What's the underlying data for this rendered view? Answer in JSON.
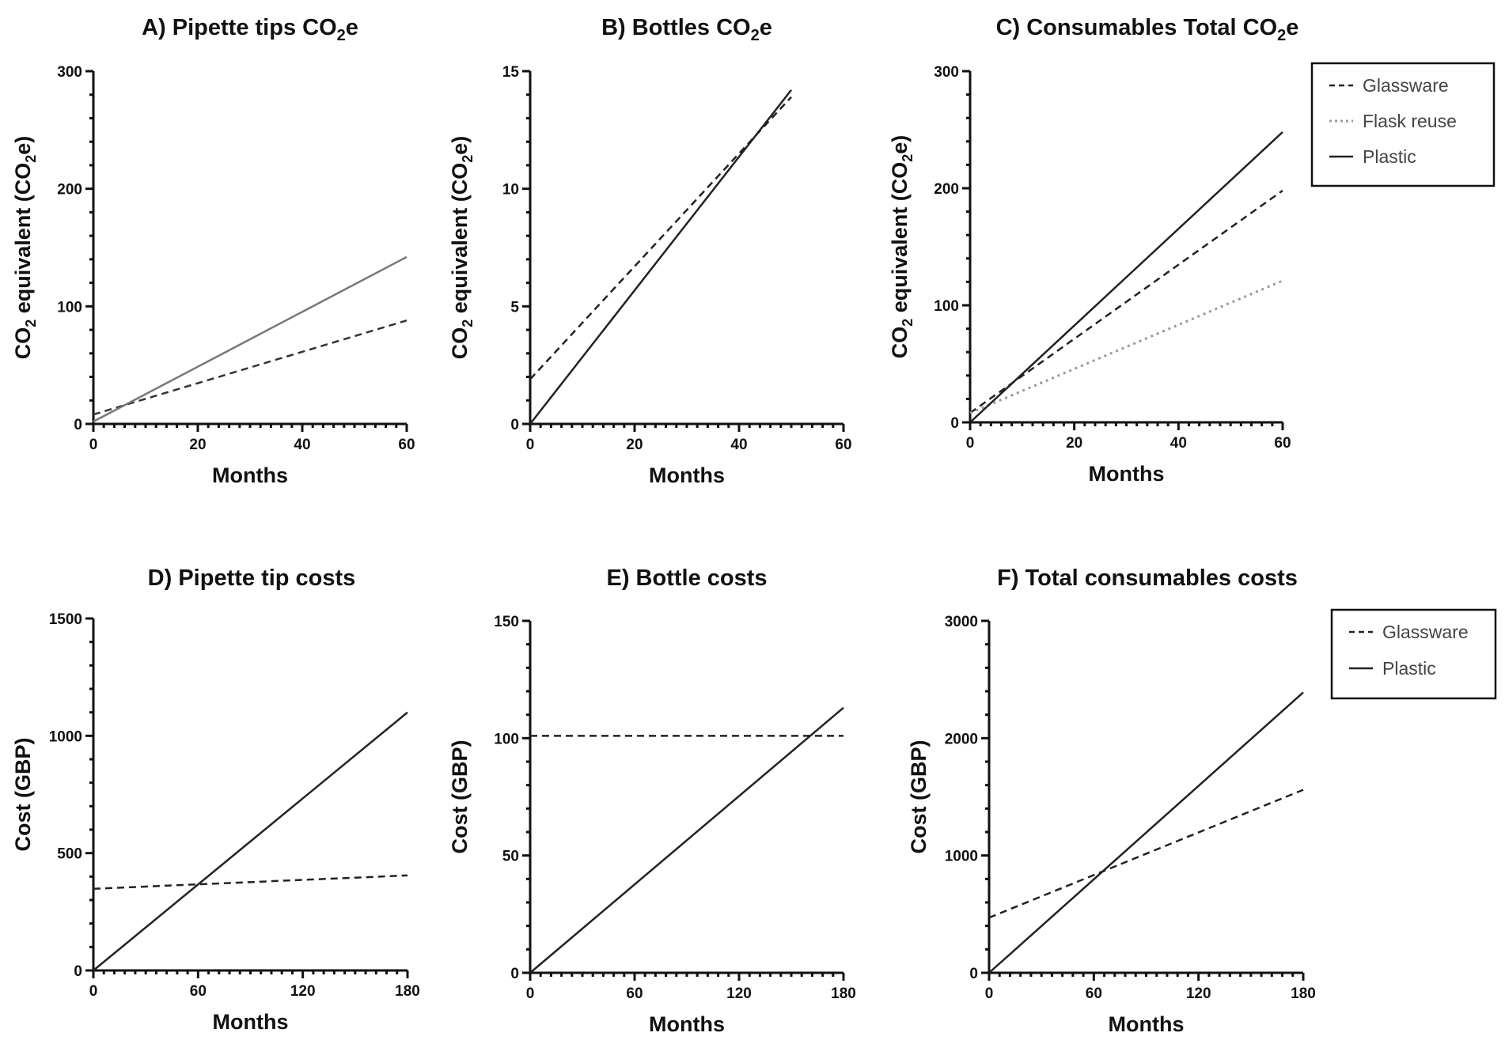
{
  "chart_data": [
    {
      "id": "A",
      "type": "line",
      "title_main": "A) Pipette tips CO",
      "title_sub": "2",
      "title_tail": "e",
      "ylabel_main": "CO",
      "ylabel_sub": "2",
      "ylabel_mid": " equivalent (CO",
      "ylabel_sub2": "2",
      "ylabel_tail": "e)",
      "xlabel": "Months",
      "xlim": [
        0,
        60
      ],
      "ylim": [
        0,
        300
      ],
      "xticks": [
        "0",
        "20",
        "40",
        "60"
      ],
      "xtick_values": [
        0,
        20,
        40,
        60
      ],
      "yticks": [
        "0",
        "100",
        "200",
        "300"
      ],
      "ytick_values": [
        0,
        100,
        200,
        300
      ],
      "series": [
        {
          "name": "Glassware",
          "style": "dashed",
          "color": "#333333",
          "x": [
            0,
            60
          ],
          "y": [
            8,
            88
          ]
        },
        {
          "name": "Plastic",
          "style": "solid",
          "color": "#777777",
          "x": [
            0,
            60
          ],
          "y": [
            2,
            142
          ]
        }
      ]
    },
    {
      "id": "B",
      "type": "line",
      "title_main": "B) Bottles CO",
      "title_sub": "2",
      "title_tail": "e",
      "ylabel_main": "CO",
      "ylabel_sub": "2",
      "ylabel_mid": " equivalent (CO",
      "ylabel_sub2": "2",
      "ylabel_tail": "e)",
      "xlabel": "Months",
      "xlim": [
        0,
        60
      ],
      "ylim": [
        0,
        15
      ],
      "xticks": [
        "0",
        "20",
        "40",
        "60"
      ],
      "xtick_values": [
        0,
        20,
        40,
        60
      ],
      "yticks": [
        "0",
        "5",
        "10",
        "15"
      ],
      "ytick_values": [
        0,
        5,
        10,
        15
      ],
      "series": [
        {
          "name": "Glassware",
          "style": "dashed",
          "color": "#222222",
          "x": [
            0,
            50
          ],
          "y": [
            1.9,
            13.9
          ]
        },
        {
          "name": "Plastic",
          "style": "solid",
          "color": "#222222",
          "x": [
            0,
            50
          ],
          "y": [
            0,
            14.2
          ]
        }
      ]
    },
    {
      "id": "C",
      "type": "line",
      "title_main": "C) Consumables Total CO",
      "title_sub": "2",
      "title_tail": "e",
      "ylabel_main": "CO",
      "ylabel_sub": "2",
      "ylabel_mid": " equivalent (CO",
      "ylabel_sub2": "2",
      "ylabel_tail": "e)",
      "xlabel": "Months",
      "xlim": [
        0,
        60
      ],
      "ylim": [
        0,
        300
      ],
      "xticks": [
        "0",
        "20",
        "40",
        "60"
      ],
      "xtick_values": [
        0,
        20,
        40,
        60
      ],
      "yticks": [
        "0",
        "100",
        "200",
        "300"
      ],
      "ytick_values": [
        0,
        100,
        200,
        300
      ],
      "legend": {
        "position": "right",
        "entries": [
          "Glassware",
          "Flask reuse",
          "Plastic"
        ]
      },
      "series": [
        {
          "name": "Glassware",
          "style": "dashed",
          "color": "#222222",
          "x": [
            0,
            60
          ],
          "y": [
            8,
            198
          ]
        },
        {
          "name": "Flask reuse",
          "style": "dotted",
          "color": "#999999",
          "x": [
            0,
            60
          ],
          "y": [
            8,
            121
          ]
        },
        {
          "name": "Plastic",
          "style": "solid",
          "color": "#222222",
          "x": [
            0,
            60
          ],
          "y": [
            0,
            248
          ]
        }
      ]
    },
    {
      "id": "D",
      "type": "line",
      "title_main": "D) Pipette tip costs",
      "title_sub": "",
      "title_tail": "",
      "ylabel_plain": "Cost (GBP)",
      "xlabel": "Months",
      "xlim": [
        0,
        180
      ],
      "ylim": [
        0,
        1500
      ],
      "xticks": [
        "0",
        "60",
        "120",
        "180"
      ],
      "xtick_values": [
        0,
        60,
        120,
        180
      ],
      "yticks": [
        "0",
        "500",
        "1000",
        "1500"
      ],
      "ytick_values": [
        0,
        500,
        1000,
        1500
      ],
      "series": [
        {
          "name": "Glassware",
          "style": "dashed",
          "color": "#222222",
          "x": [
            0,
            180
          ],
          "y": [
            348,
            405
          ]
        },
        {
          "name": "Plastic",
          "style": "solid",
          "color": "#222222",
          "x": [
            0,
            180
          ],
          "y": [
            0,
            1100
          ]
        }
      ]
    },
    {
      "id": "E",
      "type": "line",
      "title_main": "E) Bottle costs",
      "title_sub": "",
      "title_tail": "",
      "ylabel_plain": "Cost (GBP)",
      "xlabel": "Months",
      "xlim": [
        0,
        180
      ],
      "ylim": [
        0,
        150
      ],
      "xticks": [
        "0",
        "60",
        "120",
        "180"
      ],
      "xtick_values": [
        0,
        60,
        120,
        180
      ],
      "yticks": [
        "0",
        "50",
        "100",
        "150"
      ],
      "ytick_values": [
        0,
        50,
        100,
        150
      ],
      "series": [
        {
          "name": "Glassware",
          "style": "dashed",
          "color": "#222222",
          "x": [
            0,
            180
          ],
          "y": [
            101,
            101
          ]
        },
        {
          "name": "Plastic",
          "style": "solid",
          "color": "#222222",
          "x": [
            0,
            180
          ],
          "y": [
            0,
            113
          ]
        }
      ]
    },
    {
      "id": "F",
      "type": "line",
      "title_main": "F) Total consumables costs",
      "title_sub": "",
      "title_tail": "",
      "ylabel_plain": "Cost (GBP)",
      "xlabel": "Months",
      "xlim": [
        0,
        180
      ],
      "ylim": [
        0,
        3000
      ],
      "xticks": [
        "0",
        "60",
        "120",
        "180"
      ],
      "xtick_values": [
        0,
        60,
        120,
        180
      ],
      "yticks": [
        "0",
        "1000",
        "2000",
        "3000"
      ],
      "ytick_values": [
        0,
        1000,
        2000,
        3000
      ],
      "legend": {
        "position": "right",
        "entries": [
          "Glassware",
          "Plastic"
        ]
      },
      "series": [
        {
          "name": "Glassware",
          "style": "dashed",
          "color": "#222222",
          "x": [
            0,
            180
          ],
          "y": [
            470,
            1560
          ]
        },
        {
          "name": "Plastic",
          "style": "solid",
          "color": "#222222",
          "x": [
            0,
            180
          ],
          "y": [
            0,
            2390
          ]
        }
      ]
    }
  ]
}
